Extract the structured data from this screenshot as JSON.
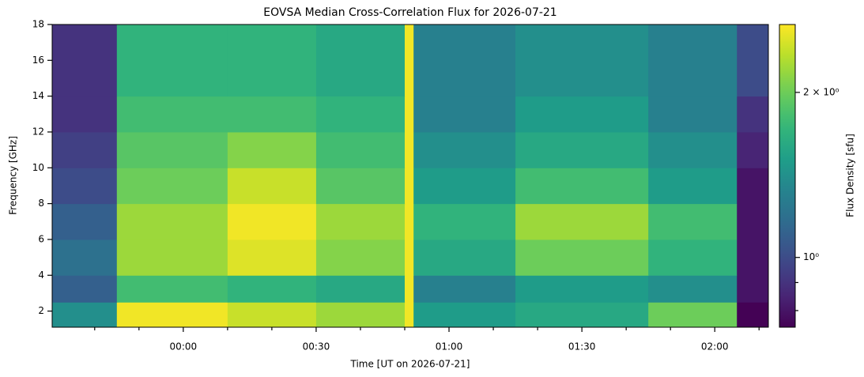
{
  "chart_data": {
    "type": "heatmap",
    "title": "EOVSA Median Cross-Correlation Flux for 2026-07-21",
    "x_label": "Time [UT on 2026-07-21]",
    "y_label": "Frequency [GHz]",
    "colorbar_label": "Flux Density [sfu]",
    "x_edges": [
      -29.6,
      -15,
      10,
      30,
      50,
      52,
      75,
      105,
      125,
      132.1
    ],
    "y_edges": [
      1.1,
      2.5,
      4,
      6,
      8,
      10,
      12,
      14,
      18
    ],
    "values": [
      [
        1.4,
        2.6,
        2.4,
        2.2,
        2.6,
        1.5,
        1.6,
        2.0,
        0.75
      ],
      [
        1.1,
        1.8,
        1.7,
        1.6,
        2.6,
        1.3,
        1.5,
        1.4,
        0.8
      ],
      [
        1.2,
        2.2,
        2.5,
        2.1,
        2.6,
        1.6,
        2.0,
        1.7,
        0.8
      ],
      [
        1.1,
        2.2,
        2.6,
        2.2,
        2.6,
        1.7,
        2.2,
        1.8,
        0.8
      ],
      [
        1.0,
        2.0,
        2.4,
        1.9,
        2.6,
        1.5,
        1.8,
        1.5,
        0.8
      ],
      [
        0.95,
        1.9,
        2.1,
        1.8,
        2.6,
        1.4,
        1.6,
        1.4,
        0.85
      ],
      [
        0.9,
        1.8,
        1.8,
        1.7,
        2.6,
        1.3,
        1.5,
        1.3,
        0.9
      ],
      [
        0.9,
        1.7,
        1.7,
        1.6,
        2.6,
        1.3,
        1.4,
        1.3,
        1.0
      ]
    ],
    "xlim": [
      -29.6,
      132.1
    ],
    "xticks": [
      {
        "value": 0,
        "label": "00:00"
      },
      {
        "value": 30,
        "label": "00:30"
      },
      {
        "value": 60,
        "label": "01:00"
      },
      {
        "value": 90,
        "label": "01:30"
      },
      {
        "value": 120,
        "label": "02:00"
      }
    ],
    "xminorticks": [
      -20,
      -10,
      10,
      20,
      40,
      50,
      70,
      80,
      100,
      110,
      130
    ],
    "ylim": [
      1.1,
      18
    ],
    "yticks": [
      2,
      4,
      6,
      8,
      10,
      12,
      14,
      16,
      18
    ],
    "colormap": "viridis",
    "clim": [
      0.746,
      2.66
    ],
    "color_scale": "log",
    "cticks": [
      {
        "value": 1,
        "label": "10⁰"
      },
      {
        "value": 2,
        "label": "2 × 10⁰"
      }
    ],
    "cminorticks": [
      0.8,
      0.9
    ]
  }
}
